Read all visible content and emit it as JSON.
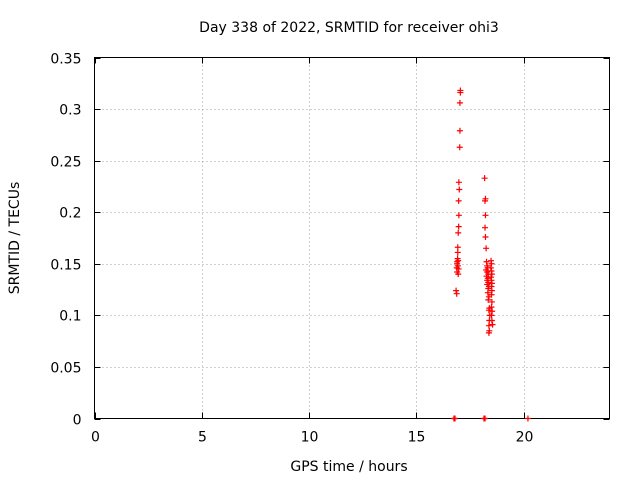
{
  "chart_data": {
    "type": "scatter",
    "title": "Day 338 of 2022, SRMTID for receiver ohi3",
    "xlabel": "GPS time / hours",
    "ylabel": "SRMTID / TECUs",
    "xlim": [
      0,
      24
    ],
    "ylim": [
      0,
      0.35
    ],
    "x_ticks": [
      0,
      5,
      10,
      15,
      20
    ],
    "x_tick_labels": [
      "0",
      "5",
      "10",
      "15",
      "20"
    ],
    "y_ticks": [
      0,
      0.05,
      0.1,
      0.15,
      0.2,
      0.25,
      0.3,
      0.35
    ],
    "y_tick_labels": [
      "0",
      "0.05",
      "0.1",
      "0.15",
      "0.2",
      "0.25",
      "0.3",
      "0.35"
    ],
    "grid": true,
    "marker": "plus",
    "color": "#ff0000",
    "series": [
      {
        "name": "SRMTID",
        "points": [
          [
            17.05,
            0.318
          ],
          [
            17.05,
            0.316
          ],
          [
            17.03,
            0.306
          ],
          [
            17.03,
            0.279
          ],
          [
            17.02,
            0.263
          ],
          [
            16.98,
            0.229
          ],
          [
            17.0,
            0.222
          ],
          [
            16.97,
            0.211
          ],
          [
            16.98,
            0.197
          ],
          [
            16.97,
            0.186
          ],
          [
            16.95,
            0.18
          ],
          [
            16.93,
            0.166
          ],
          [
            16.93,
            0.161
          ],
          [
            16.92,
            0.155
          ],
          [
            16.9,
            0.152
          ],
          [
            16.95,
            0.153
          ],
          [
            16.9,
            0.15
          ],
          [
            16.93,
            0.148
          ],
          [
            16.88,
            0.146
          ],
          [
            16.97,
            0.145
          ],
          [
            16.9,
            0.142
          ],
          [
            16.95,
            0.14
          ],
          [
            16.85,
            0.124
          ],
          [
            16.88,
            0.121
          ],
          [
            18.18,
            0.233
          ],
          [
            18.22,
            0.213
          ],
          [
            18.2,
            0.211
          ],
          [
            18.22,
            0.197
          ],
          [
            18.2,
            0.185
          ],
          [
            18.22,
            0.176
          ],
          [
            18.25,
            0.165
          ],
          [
            18.27,
            0.152
          ],
          [
            18.3,
            0.148
          ],
          [
            18.32,
            0.146
          ],
          [
            18.25,
            0.144
          ],
          [
            18.3,
            0.142
          ],
          [
            18.35,
            0.14
          ],
          [
            18.27,
            0.138
          ],
          [
            18.33,
            0.136
          ],
          [
            18.3,
            0.134
          ],
          [
            18.35,
            0.132
          ],
          [
            18.3,
            0.13
          ],
          [
            18.38,
            0.128
          ],
          [
            18.35,
            0.126
          ],
          [
            18.33,
            0.122
          ],
          [
            18.38,
            0.118
          ],
          [
            18.35,
            0.115
          ],
          [
            18.4,
            0.107
          ],
          [
            18.38,
            0.105
          ],
          [
            18.42,
            0.1
          ],
          [
            18.4,
            0.095
          ],
          [
            18.38,
            0.09
          ],
          [
            18.4,
            0.085
          ],
          [
            18.38,
            0.083
          ],
          [
            18.48,
            0.153
          ],
          [
            18.5,
            0.15
          ],
          [
            18.47,
            0.146
          ],
          [
            18.5,
            0.143
          ],
          [
            18.52,
            0.14
          ],
          [
            18.48,
            0.137
          ],
          [
            18.5,
            0.134
          ],
          [
            18.52,
            0.131
          ],
          [
            18.5,
            0.128
          ],
          [
            18.52,
            0.124
          ],
          [
            18.5,
            0.12
          ],
          [
            18.52,
            0.113
          ],
          [
            18.5,
            0.108
          ],
          [
            18.53,
            0.104
          ],
          [
            18.5,
            0.1
          ],
          [
            18.52,
            0.095
          ],
          [
            18.55,
            0.091
          ],
          [
            16.75,
            0.0
          ],
          [
            16.77,
            0.0
          ],
          [
            16.8,
            0.0
          ],
          [
            18.15,
            0.0
          ],
          [
            18.18,
            0.0
          ],
          [
            18.2,
            0.0
          ],
          [
            20.2,
            0.0
          ]
        ]
      }
    ]
  }
}
